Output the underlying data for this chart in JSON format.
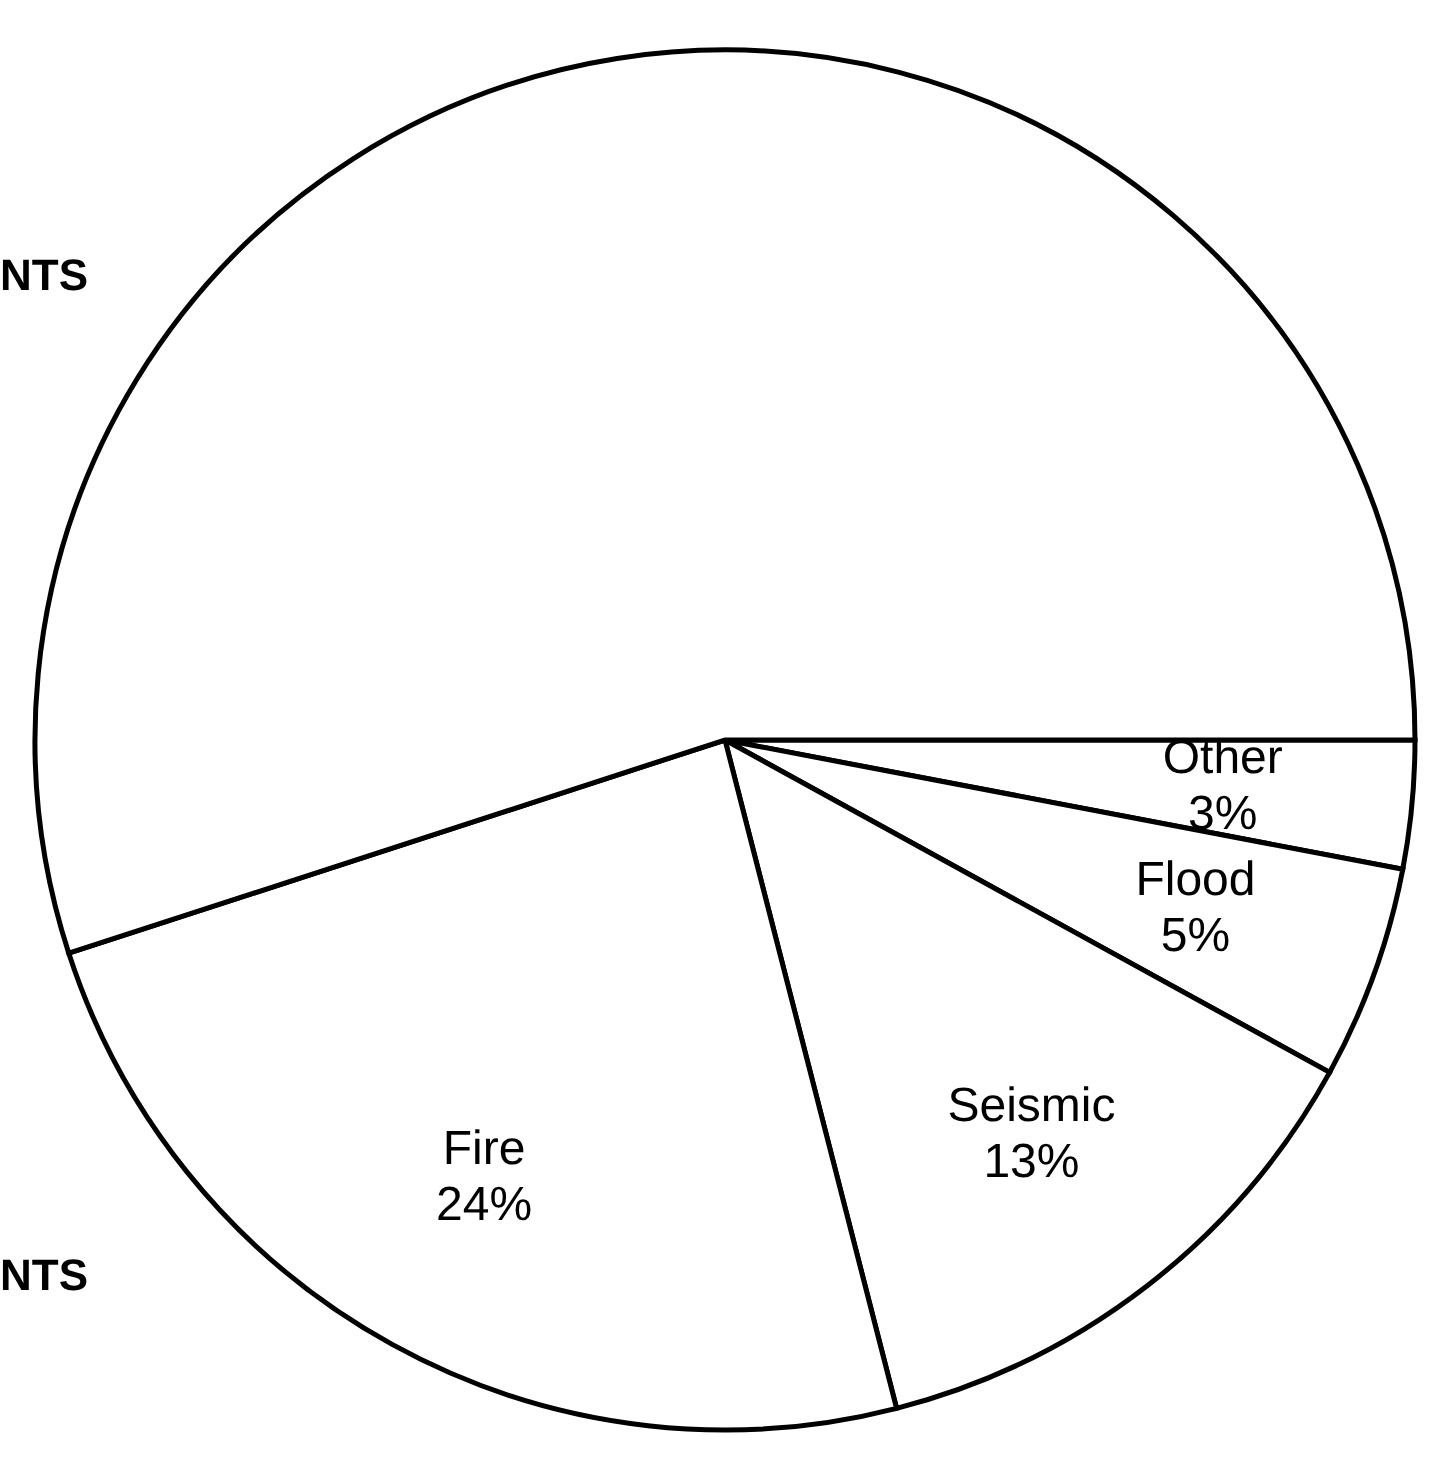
{
  "chart_data": {
    "type": "pie",
    "categories": [
      "Other",
      "Flood",
      "Seismic",
      "Fire",
      null
    ],
    "values": [
      3,
      5,
      13,
      24,
      55
    ],
    "colors": [
      "#ffffff",
      "#ffffff",
      "#ffffff",
      "#ffffff",
      "#ffffff"
    ],
    "value_labels": [
      "3%",
      "5%",
      "13%",
      "24%",
      null
    ],
    "annotations": [
      "NTS",
      "NTS"
    ]
  }
}
